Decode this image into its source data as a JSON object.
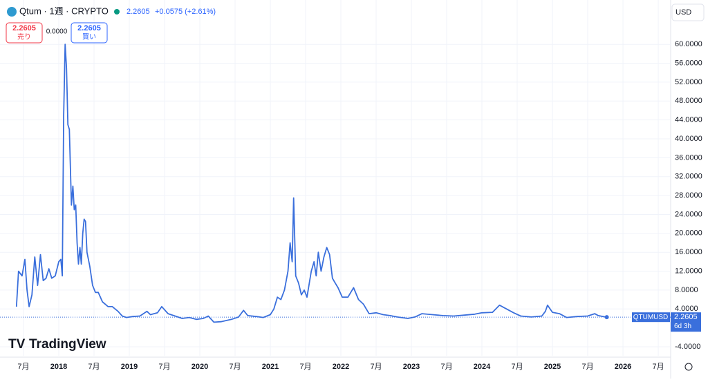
{
  "ui": {
    "symbol": "Qtum · 1週 · CRYPTO",
    "last": "2.2605",
    "change": "+0.0575 (+2.61%)",
    "currency": "USD",
    "sell_price": "2.2605",
    "sell_label": "売り",
    "spread": "0.0000",
    "buy_price": "2.2605",
    "buy_label": "買い",
    "ticker": "QTUMUSD",
    "price_tag": "2.2605",
    "countdown": "6d 3h",
    "logo": "TradingView"
  },
  "chart_data": {
    "type": "line",
    "color": "#3a6fdc",
    "x": [
      2017.4,
      2017.43,
      2017.48,
      2017.52,
      2017.55,
      2017.58,
      2017.62,
      2017.66,
      2017.7,
      2017.74,
      2017.78,
      2017.82,
      2017.86,
      2017.9,
      2017.95,
      2018.0,
      2018.03,
      2018.05,
      2018.07,
      2018.09,
      2018.11,
      2018.13,
      2018.15,
      2018.18,
      2018.2,
      2018.22,
      2018.24,
      2018.26,
      2018.28,
      2018.3,
      2018.32,
      2018.34,
      2018.36,
      2018.38,
      2018.4,
      2018.44,
      2018.48,
      2018.52,
      2018.56,
      2018.62,
      2018.7,
      2018.76,
      2018.84,
      2018.9,
      2018.96,
      2019.05,
      2019.15,
      2019.25,
      2019.3,
      2019.4,
      2019.46,
      2019.55,
      2019.65,
      2019.75,
      2019.85,
      2019.95,
      2020.05,
      2020.12,
      2020.2,
      2020.3,
      2020.45,
      2020.55,
      2020.62,
      2020.68,
      2020.8,
      2020.9,
      2021.0,
      2021.05,
      2021.1,
      2021.15,
      2021.2,
      2021.25,
      2021.28,
      2021.31,
      2021.33,
      2021.36,
      2021.4,
      2021.44,
      2021.48,
      2021.52,
      2021.58,
      2021.62,
      2021.65,
      2021.68,
      2021.72,
      2021.76,
      2021.8,
      2021.84,
      2021.88,
      2021.92,
      2021.96,
      2022.02,
      2022.1,
      2022.18,
      2022.25,
      2022.32,
      2022.4,
      2022.5,
      2022.6,
      2022.7,
      2022.8,
      2022.95,
      2023.05,
      2023.15,
      2023.3,
      2023.45,
      2023.6,
      2023.75,
      2023.9,
      2024.0,
      2024.15,
      2024.25,
      2024.35,
      2024.45,
      2024.55,
      2024.7,
      2024.85,
      2024.9,
      2024.93,
      2025.0,
      2025.1,
      2025.2,
      2025.35,
      2025.5,
      2025.6,
      2025.65,
      2025.77
    ],
    "values": [
      4.5,
      12,
      11,
      14.5,
      8,
      4.5,
      7,
      15,
      9,
      15.5,
      10,
      10.5,
      12.5,
      10.5,
      11,
      14,
      14.5,
      11,
      45,
      60,
      55,
      43,
      42,
      26,
      30,
      25,
      26,
      18,
      13.5,
      17,
      13.5,
      20,
      23,
      22.5,
      16,
      13,
      9,
      7.5,
      7.5,
      5.5,
      4.5,
      4.5,
      3.5,
      2.5,
      2.2,
      2.4,
      2.5,
      3.5,
      2.8,
      3.2,
      4.5,
      3,
      2.5,
      2,
      2.2,
      1.8,
      2,
      2.5,
      1.2,
      1.3,
      1.8,
      2.3,
      3.7,
      2.6,
      2.4,
      2.2,
      2.8,
      4,
      6.5,
      6,
      8,
      12,
      18,
      14,
      27.5,
      11,
      9.5,
      7,
      8,
      6.5,
      12,
      14,
      11,
      16,
      12,
      15,
      17,
      15.5,
      10.5,
      9.5,
      8.5,
      6.5,
      6.5,
      8.5,
      6,
      5,
      3,
      3.2,
      2.8,
      2.6,
      2.3,
      2,
      2.3,
      3,
      2.8,
      2.6,
      2.5,
      2.7,
      2.9,
      3.2,
      3.3,
      4.8,
      4,
      3.2,
      2.5,
      2.3,
      2.5,
      3.5,
      4.8,
      3.3,
      3,
      2.2,
      2.4,
      2.5,
      3,
      2.6,
      2.2605
    ],
    "xlim": [
      2017.167,
      2026.676
    ],
    "xticks": [
      {
        "value": 2017.5,
        "label": "7月"
      },
      2018,
      {
        "value": 2018.5,
        "label": "7月"
      },
      2019,
      {
        "value": 2019.5,
        "label": "7月"
      },
      2020,
      {
        "value": 2020.5,
        "label": "7月"
      },
      2021,
      {
        "value": 2021.5,
        "label": "7月"
      },
      2022,
      {
        "value": 2022.5,
        "label": "7月"
      },
      2023,
      {
        "value": 2023.5,
        "label": "7月"
      },
      2024,
      {
        "value": 2024.5,
        "label": "7月"
      },
      2025,
      {
        "value": 2025.5,
        "label": "7月"
      },
      2026,
      {
        "value": 2026.5,
        "label": "7月"
      }
    ],
    "ylim": [
      -5.9,
      65
    ],
    "yticks": [
      {
        "value": -4,
        "label": "-4.0000"
      },
      {
        "value": 4,
        "label": "4.0000"
      },
      {
        "value": 8,
        "label": "8.0000"
      },
      {
        "value": 12,
        "label": "12.0000"
      },
      {
        "value": 16,
        "label": "16.0000"
      },
      {
        "value": 20,
        "label": "20.0000"
      },
      {
        "value": 24,
        "label": "24.0000"
      },
      {
        "value": 28,
        "label": "28.0000"
      },
      {
        "value": 32,
        "label": "32.0000"
      },
      {
        "value": 36,
        "label": "36.0000"
      },
      {
        "value": 40,
        "label": "40.0000"
      },
      {
        "value": 44,
        "label": "44.0000"
      },
      {
        "value": 48,
        "label": "48.0000"
      },
      {
        "value": 52,
        "label": "52.0000"
      },
      {
        "value": 56,
        "label": "56.0000"
      },
      {
        "value": 60,
        "label": "60.0000"
      }
    ],
    "grid": true
  }
}
